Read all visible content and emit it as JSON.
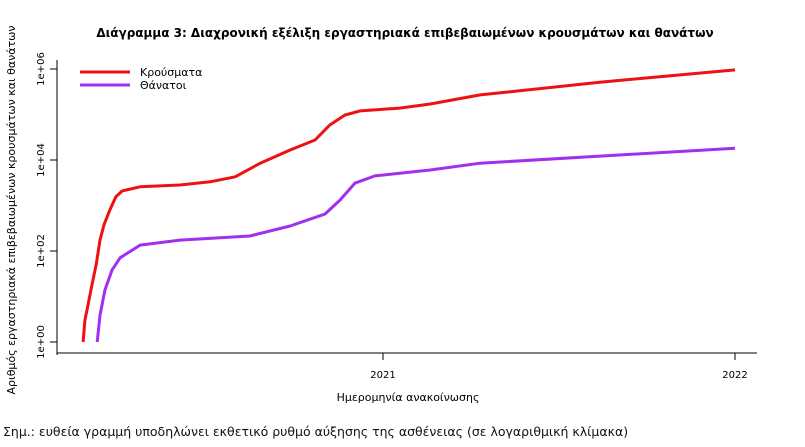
{
  "chart_data": {
    "type": "line",
    "title": "Διάγραμμα 3: Διαχρονική εξέλιξη εργαστηριακά επιβεβαιωμένων κρουσμάτων και θανάτων",
    "xlabel": "Ημερομηνία ανακοίνωσης",
    "ylabel": "Αριθμός εργαστηριακά επιβεβαιωμένων κρουσμάτων και θανάτων",
    "y_scale": "log10",
    "xlim": [
      2020.08,
      2022.06
    ],
    "ylim_log10": [
      -0.25,
      6.3
    ],
    "x_ticks": [
      {
        "value": 2021,
        "label": "2021"
      },
      {
        "value": 2022,
        "label": "2022"
      }
    ],
    "y_ticks": [
      {
        "log10": 0,
        "label": "1e+00"
      },
      {
        "log10": 2,
        "label": "1e+02"
      },
      {
        "log10": 4,
        "label": "1e+04"
      },
      {
        "log10": 6,
        "label": "1e+06"
      }
    ],
    "legend_position": "top-left",
    "series": [
      {
        "name": "Κρούσματα",
        "color": "#ee1111",
        "x": [
          2020.148,
          2020.153,
          2020.162,
          2020.173,
          2020.185,
          2020.196,
          2020.207,
          2020.224,
          2020.241,
          2020.259,
          2020.31,
          2020.423,
          2020.509,
          2020.58,
          2020.651,
          2020.736,
          2020.807,
          2020.849,
          2020.892,
          2020.935,
          2021.048,
          2021.134,
          2021.276,
          2021.616,
          2022.0
        ],
        "log10_values": [
          0,
          0.48,
          0.81,
          1.25,
          1.69,
          2.24,
          2.57,
          2.9,
          3.19,
          3.32,
          3.41,
          3.45,
          3.52,
          3.63,
          3.93,
          4.22,
          4.44,
          4.77,
          4.99,
          5.08,
          5.14,
          5.23,
          5.43,
          5.71,
          5.98
        ]
      },
      {
        "name": "Θάνατοι",
        "color": "#a030ee",
        "x": [
          2020.188,
          2020.196,
          2020.21,
          2020.23,
          2020.253,
          2020.31,
          2020.423,
          2020.622,
          2020.736,
          2020.835,
          2020.878,
          2020.92,
          2020.977,
          2021.134,
          2021.276,
          2022.0
        ],
        "log10_values": [
          0,
          0.59,
          1.14,
          1.58,
          1.85,
          2.13,
          2.24,
          2.33,
          2.55,
          2.81,
          3.12,
          3.49,
          3.65,
          3.78,
          3.93,
          4.26
        ]
      }
    ]
  },
  "note": "Σημ.: ευθεία γραμμή υποδηλώνει εκθετικό ρυθμό αύξησης της ασθένειας (σε λογαριθμική κλίμακα)"
}
